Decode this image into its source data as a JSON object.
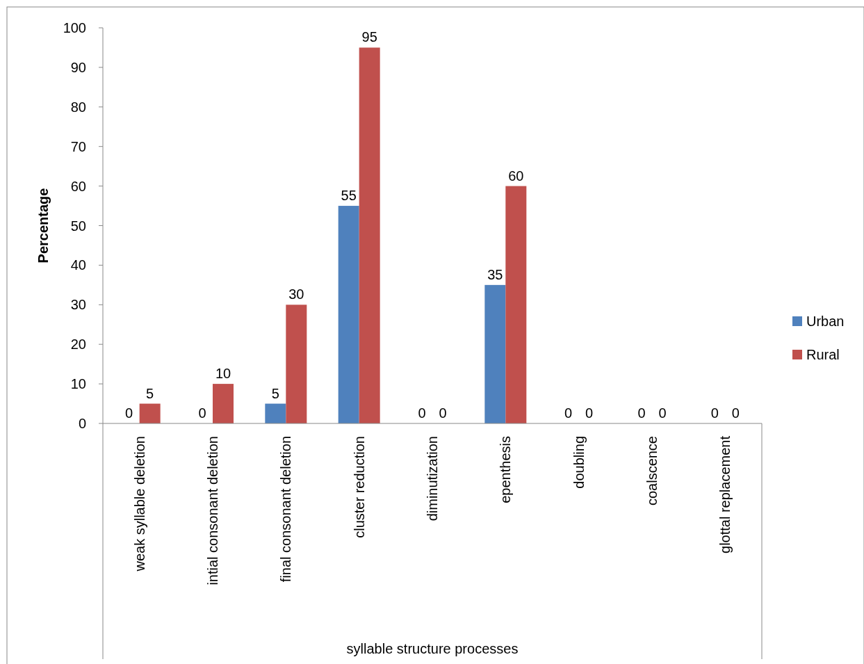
{
  "chart_data": {
    "type": "bar",
    "xlabel": "syllable structure processes",
    "ylabel": "Percentage",
    "categories": [
      "weak syllable deletion",
      "intial consonant deletion",
      "final consonant deletion",
      "cluster reduction",
      "diminutization",
      "epenthesis",
      "doubling",
      "coalscence",
      "glottal replacement"
    ],
    "series": [
      {
        "name": "Urban",
        "color": "#4f81bd",
        "values": [
          0,
          0,
          5,
          55,
          0,
          35,
          0,
          0,
          0
        ]
      },
      {
        "name": "Rural",
        "color": "#c0504d",
        "values": [
          5,
          10,
          30,
          95,
          0,
          60,
          0,
          0,
          0
        ]
      }
    ],
    "ylim": [
      0,
      100
    ],
    "yticks": [
      0,
      10,
      20,
      30,
      40,
      50,
      60,
      70,
      80,
      90,
      100
    ],
    "grid": false,
    "legend": "right",
    "data_labels": true
  }
}
